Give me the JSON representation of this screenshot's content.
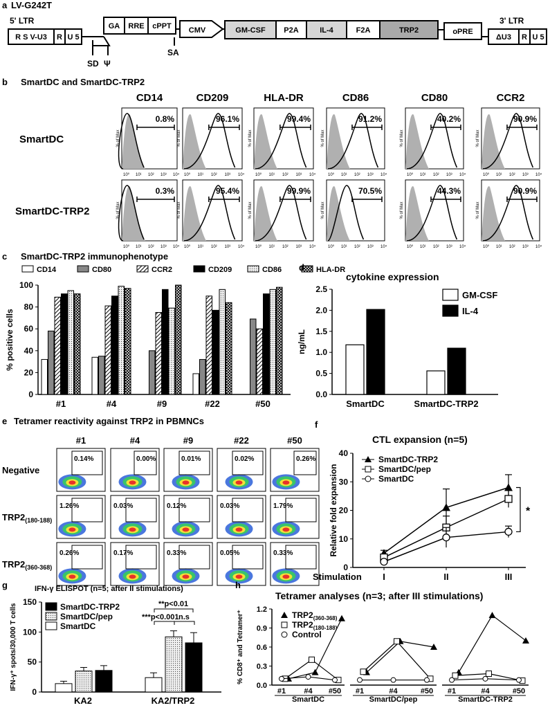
{
  "panel_a": {
    "letter": "a",
    "title": "LV-G242T",
    "ltr5": "5' LTR",
    "ltr3": "3' LTR",
    "segments": [
      "R S V-U3",
      "R",
      "U 5",
      "GA",
      "RRE",
      "cPPT",
      "CMV",
      "GM-CSF",
      "P2A",
      "IL-4",
      "F2A",
      "TRP2",
      "oPRE",
      "ΔU3",
      "R",
      "U 5"
    ],
    "sd": "SD",
    "psi": "Ψ",
    "sa": "SA"
  },
  "panel_b": {
    "letter": "b",
    "title": "SmartDC and SmartDC-TRP2",
    "markers": [
      "CD14",
      "CD209",
      "HLA-DR",
      "CD86",
      "CD80",
      "CCR2"
    ],
    "rows": [
      {
        "label": "SmartDC",
        "values": [
          "0.8%",
          "96.1%",
          "99.4%",
          "91.2%",
          "40.2%",
          "90.9%"
        ]
      },
      {
        "label": "SmartDC-TRP2",
        "values": [
          "0.3%",
          "95.4%",
          "99.9%",
          "70.5%",
          "44.3%",
          "90.9%"
        ]
      }
    ],
    "ylabel": "% of Max",
    "xticks": [
      "10⁰",
      "10¹",
      "10²",
      "10³",
      "10⁴"
    ]
  },
  "chart_data": [
    {
      "panel": "c",
      "type": "bar",
      "title": "SmartDC-TRP2 immunophenotype",
      "ylabel": "% positive cells",
      "xlabel": "",
      "ylim": [
        0,
        100
      ],
      "yticks": [
        "0",
        "20",
        "40",
        "60",
        "80",
        "100"
      ],
      "categories": [
        "#1",
        "#4",
        "#9",
        "#22",
        "#50"
      ],
      "series": [
        {
          "name": "CD14",
          "values": [
            32,
            34,
            0,
            19,
            0
          ]
        },
        {
          "name": "CD80",
          "values": [
            58,
            35,
            40,
            32,
            69
          ]
        },
        {
          "name": "CCR2",
          "values": [
            89,
            81,
            75,
            90,
            60
          ]
        },
        {
          "name": "CD209",
          "values": [
            92,
            90,
            96,
            77,
            92
          ]
        },
        {
          "name": "CD86",
          "values": [
            95,
            99,
            79,
            96,
            96
          ]
        },
        {
          "name": "HLA-DR",
          "values": [
            92,
            97,
            100,
            84,
            98
          ]
        }
      ],
      "legend_position": "top"
    },
    {
      "panel": "d",
      "type": "bar",
      "title": "cytokine expression",
      "ylabel": "ng/mL",
      "ylim": [
        0,
        2.5
      ],
      "yticks": [
        "0.0",
        "0.5",
        "1.0",
        "1.5",
        "2.0",
        "2.5"
      ],
      "categories": [
        "SmartDC",
        "SmartDC-TRP2"
      ],
      "series": [
        {
          "name": "GM-CSF",
          "values": [
            1.18,
            0.56
          ]
        },
        {
          "name": "IL-4",
          "values": [
            2.02,
            1.1
          ]
        }
      ],
      "legend_position": "top-right"
    },
    {
      "panel": "f",
      "type": "line",
      "title": "CTL expansion (n=5)",
      "ylabel": "Relative fold expansion",
      "xlabel": "Stimulation",
      "ylim": [
        0,
        40
      ],
      "yticks": [
        "0",
        "10",
        "20",
        "30",
        "40"
      ],
      "categories": [
        "I",
        "II",
        "III"
      ],
      "series": [
        {
          "name": "SmartDC-TRP2",
          "values": [
            5,
            21,
            28
          ],
          "errors": [
            1,
            6.5,
            4.5
          ]
        },
        {
          "name": "SmartDC/pep",
          "values": [
            3.5,
            14,
            24
          ],
          "errors": [
            1,
            4,
            3
          ]
        },
        {
          "name": "SmartDC",
          "values": [
            2,
            10.5,
            12.5
          ],
          "errors": [
            0.8,
            3.5,
            2
          ]
        }
      ],
      "annotation": "*",
      "legend_position": "top-left"
    },
    {
      "panel": "g",
      "type": "bar",
      "title": "IFN-γ ELISPOT (n=5; after II stimulations)",
      "ylabel": "IFN-γ⁺ spots/30,000 T cells",
      "ylim": [
        0,
        150
      ],
      "yticks": [
        "0",
        "50",
        "100",
        "150"
      ],
      "categories": [
        "KA2",
        "KA2/TRP2"
      ],
      "series": [
        {
          "name": "SmartDC-TRP2",
          "values": [
            36,
            82
          ],
          "errors": [
            8,
            17
          ]
        },
        {
          "name": "SmartDC/pep",
          "values": [
            35,
            92
          ],
          "errors": [
            6,
            10
          ]
        },
        {
          "name": "SmartDC",
          "values": [
            14,
            24
          ],
          "errors": [
            4,
            8
          ]
        }
      ],
      "annotations": [
        "**p<0.01",
        "***p<0.001",
        "n.s"
      ],
      "legend_position": "top-left"
    },
    {
      "panel": "h",
      "type": "line",
      "title": "Tetramer analyses (n=3; after III stimulations)",
      "ylabel": "% CD8⁺ and Tetramer⁺",
      "ylim": [
        0,
        1.2
      ],
      "yticks": [
        "0.0",
        "0.3",
        "0.6",
        "0.9",
        "1.2"
      ],
      "groups": [
        "SmartDC",
        "SmartDC/pep",
        "SmartDC-TRP2"
      ],
      "categories": [
        "#1",
        "#4",
        "#50"
      ],
      "series": [
        {
          "name": "TRP2(360-368)",
          "values": [
            [
              0.1,
              0.2,
              1.05
            ],
            [
              0.2,
              0.69,
              0.6
            ],
            [
              0.2,
              1.1,
              0.7
            ]
          ]
        },
        {
          "name": "TRP2(180-188)",
          "values": [
            [
              0.1,
              0.4,
              0.08
            ],
            [
              0.21,
              0.69,
              0.1
            ],
            [
              0.15,
              0.18,
              0.07
            ]
          ]
        },
        {
          "name": "Control",
          "values": [
            [
              0.1,
              0.13,
              0.08
            ],
            [
              0.08,
              0.08,
              0.08
            ],
            [
              0.08,
              0.1,
              0.08
            ]
          ]
        }
      ],
      "legend_position": "top-left"
    }
  ],
  "panel_e": {
    "letter": "e",
    "title": "Tetramer reactivity against TRP2 in PBMNCs",
    "samples": [
      "#1",
      "#4",
      "#9",
      "#22",
      "#50"
    ],
    "rows": [
      {
        "label": "Negative",
        "sub": "",
        "values": [
          "0.14%",
          "0.00%",
          "0.01%",
          "0.02%",
          "0.26%"
        ]
      },
      {
        "label": "TRP2",
        "sub": "(180-188)",
        "values": [
          "1.26%",
          "0.03%",
          "0.12%",
          "0.03%",
          "1.79%"
        ]
      },
      {
        "label": "TRP2",
        "sub": "(360-368)",
        "values": [
          "0.26%",
          "0.17%",
          "0.33%",
          "0.05%",
          "0.33%"
        ]
      }
    ]
  },
  "letters": {
    "c": "c",
    "d": "d",
    "f": "f",
    "g": "g",
    "h": "h"
  }
}
